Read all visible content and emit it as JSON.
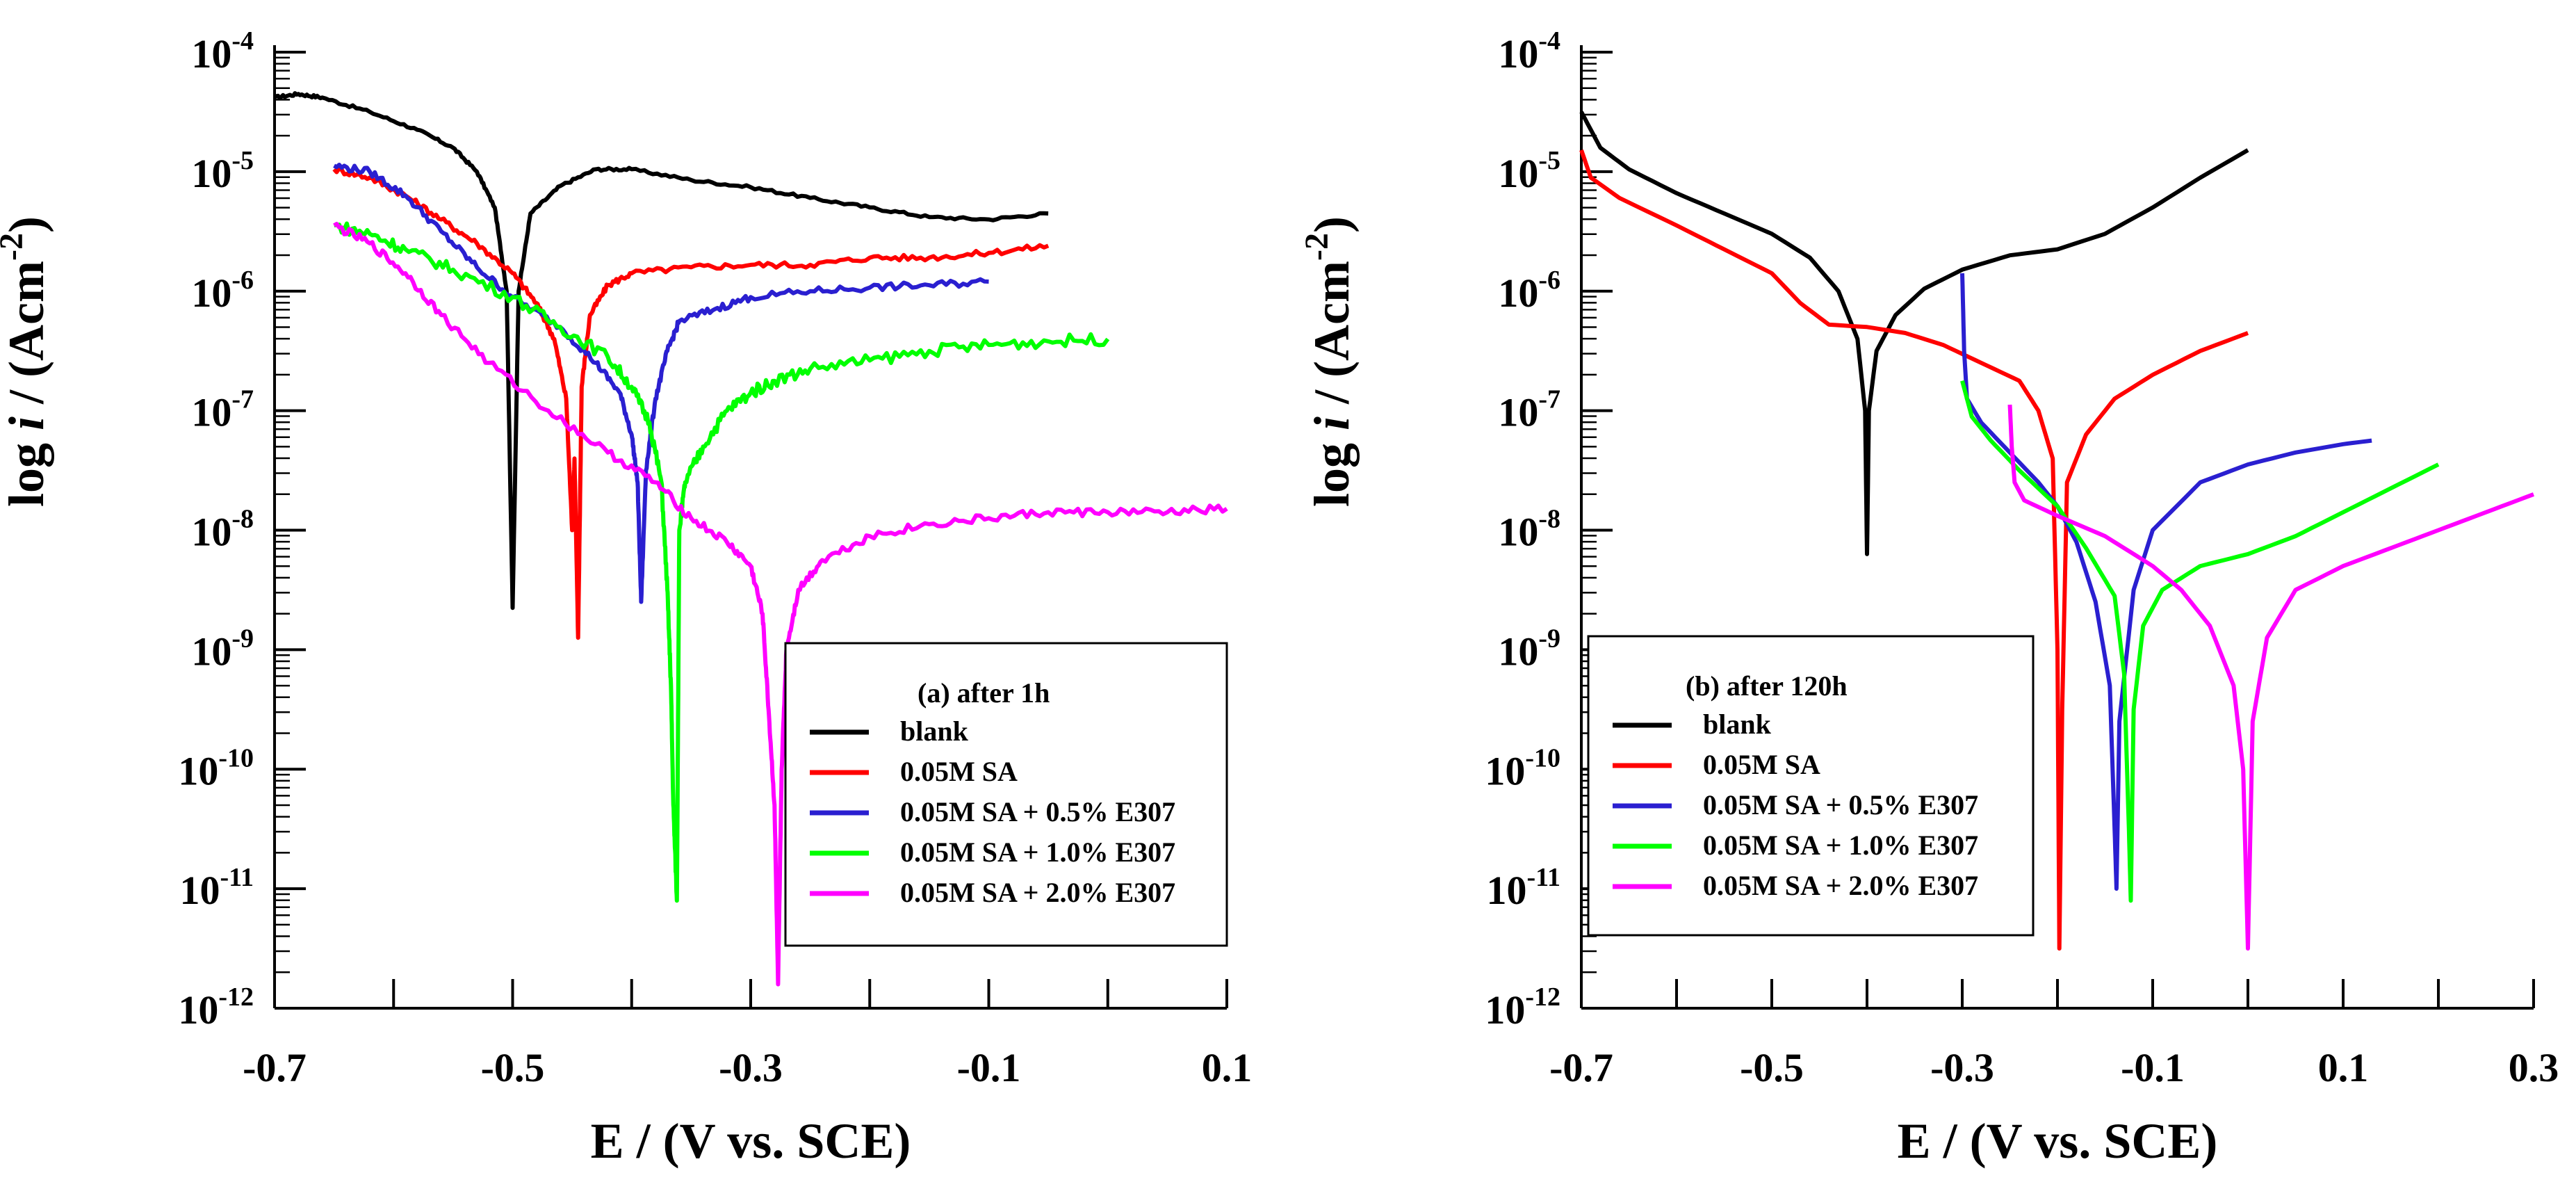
{
  "chart_data": [
    {
      "type": "line",
      "title": "(a) after 1h",
      "xlabel": "E / (V vs. SCE)",
      "ylabel_parts": [
        "log ",
        "i",
        " / (Acm",
        "-2",
        ")"
      ],
      "xlim": [
        -0.7,
        0.1
      ],
      "ylim_exp": [
        -12,
        -4
      ],
      "x_ticks": [
        -0.7,
        -0.5,
        -0.3,
        -0.1,
        0.1
      ],
      "x_tick_labels": [
        "-0.7",
        "-0.5",
        "-0.3",
        "-0.1",
        "0.1"
      ],
      "y_ticks": [
        -12,
        -11,
        -10,
        -9,
        -8,
        -7,
        -6,
        -5,
        -4
      ],
      "y_tick_base": "10",
      "y_tick_exponents": [
        "-12",
        "-11",
        "-10",
        "-9",
        "-8",
        "-7",
        "-6",
        "-5",
        "-4"
      ],
      "legend_title": "(a) after 1h",
      "legend_position": "bottom-right",
      "series": [
        {
          "name": "blank",
          "color": "#000000",
          "noise": 0.012,
          "points": [
            [
              -0.7,
              -4.38
            ],
            [
              -0.68,
              -4.35
            ],
            [
              -0.66,
              -4.38
            ],
            [
              -0.62,
              -4.5
            ],
            [
              -0.58,
              -4.65
            ],
            [
              -0.55,
              -4.8
            ],
            [
              -0.53,
              -5.0
            ],
            [
              -0.515,
              -5.3
            ],
            [
              -0.505,
              -6.0
            ],
            [
              -0.5,
              -8.65
            ],
            [
              -0.495,
              -6.0
            ],
            [
              -0.485,
              -5.35
            ],
            [
              -0.46,
              -5.12
            ],
            [
              -0.43,
              -4.98
            ],
            [
              -0.4,
              -4.98
            ],
            [
              -0.35,
              -5.07
            ],
            [
              -0.3,
              -5.13
            ],
            [
              -0.25,
              -5.22
            ],
            [
              -0.2,
              -5.3
            ],
            [
              -0.15,
              -5.38
            ],
            [
              -0.1,
              -5.4
            ],
            [
              -0.05,
              -5.35
            ]
          ]
        },
        {
          "name": "0.05M SA",
          "color": "#ff0000",
          "noise": 0.025,
          "points": [
            [
              -0.65,
              -4.98
            ],
            [
              -0.62,
              -5.05
            ],
            [
              -0.59,
              -5.2
            ],
            [
              -0.56,
              -5.4
            ],
            [
              -0.53,
              -5.6
            ],
            [
              -0.5,
              -5.85
            ],
            [
              -0.48,
              -6.1
            ],
            [
              -0.465,
              -6.4
            ],
            [
              -0.455,
              -6.9
            ],
            [
              -0.45,
              -8.0
            ],
            [
              -0.448,
              -7.4
            ],
            [
              -0.445,
              -8.9
            ],
            [
              -0.442,
              -6.8
            ],
            [
              -0.435,
              -6.2
            ],
            [
              -0.42,
              -5.95
            ],
            [
              -0.4,
              -5.85
            ],
            [
              -0.35,
              -5.8
            ],
            [
              -0.3,
              -5.78
            ],
            [
              -0.25,
              -5.78
            ],
            [
              -0.2,
              -5.72
            ],
            [
              -0.15,
              -5.72
            ],
            [
              -0.1,
              -5.68
            ],
            [
              -0.05,
              -5.62
            ]
          ]
        },
        {
          "name": "0.05M SA + 0.5% E307",
          "color": "#2a1fd0",
          "noise": 0.03,
          "points": [
            [
              -0.65,
              -4.95
            ],
            [
              -0.62,
              -5.0
            ],
            [
              -0.59,
              -5.2
            ],
            [
              -0.56,
              -5.5
            ],
            [
              -0.53,
              -5.8
            ],
            [
              -0.5,
              -6.05
            ],
            [
              -0.46,
              -6.3
            ],
            [
              -0.43,
              -6.6
            ],
            [
              -0.41,
              -6.85
            ],
            [
              -0.4,
              -7.2
            ],
            [
              -0.395,
              -7.6
            ],
            [
              -0.392,
              -8.6
            ],
            [
              -0.388,
              -7.5
            ],
            [
              -0.38,
              -6.9
            ],
            [
              -0.37,
              -6.5
            ],
            [
              -0.36,
              -6.25
            ],
            [
              -0.33,
              -6.15
            ],
            [
              -0.3,
              -6.05
            ],
            [
              -0.25,
              -6.0
            ],
            [
              -0.2,
              -5.97
            ],
            [
              -0.15,
              -5.95
            ],
            [
              -0.1,
              -5.92
            ]
          ]
        },
        {
          "name": "0.05M SA + 1.0% E307",
          "color": "#00ff00",
          "noise": 0.05,
          "points": [
            [
              -0.65,
              -5.45
            ],
            [
              -0.62,
              -5.52
            ],
            [
              -0.59,
              -5.65
            ],
            [
              -0.55,
              -5.82
            ],
            [
              -0.5,
              -6.05
            ],
            [
              -0.46,
              -6.3
            ],
            [
              -0.42,
              -6.55
            ],
            [
              -0.4,
              -6.8
            ],
            [
              -0.385,
              -7.1
            ],
            [
              -0.375,
              -7.6
            ],
            [
              -0.37,
              -8.5
            ],
            [
              -0.367,
              -9.3
            ],
            [
              -0.365,
              -10.3
            ],
            [
              -0.362,
              -11.1
            ],
            [
              -0.36,
              -8.0
            ],
            [
              -0.355,
              -7.6
            ],
            [
              -0.34,
              -7.3
            ],
            [
              -0.32,
              -7.0
            ],
            [
              -0.3,
              -6.85
            ],
            [
              -0.28,
              -6.75
            ],
            [
              -0.25,
              -6.65
            ],
            [
              -0.2,
              -6.58
            ],
            [
              -0.15,
              -6.5
            ],
            [
              -0.1,
              -6.45
            ],
            [
              -0.05,
              -6.42
            ],
            [
              0.0,
              -6.4
            ]
          ]
        },
        {
          "name": "0.05M SA + 2.0% E307",
          "color": "#ff00ff",
          "noise": 0.035,
          "points": [
            [
              -0.65,
              -5.45
            ],
            [
              -0.62,
              -5.6
            ],
            [
              -0.59,
              -5.85
            ],
            [
              -0.56,
              -6.2
            ],
            [
              -0.52,
              -6.6
            ],
            [
              -0.47,
              -7.0
            ],
            [
              -0.42,
              -7.35
            ],
            [
              -0.38,
              -7.6
            ],
            [
              -0.35,
              -7.9
            ],
            [
              -0.32,
              -8.1
            ],
            [
              -0.3,
              -8.3
            ],
            [
              -0.29,
              -8.7
            ],
            [
              -0.285,
              -9.5
            ],
            [
              -0.28,
              -10.3
            ],
            [
              -0.277,
              -11.8
            ],
            [
              -0.274,
              -10.0
            ],
            [
              -0.27,
              -9.0
            ],
            [
              -0.26,
              -8.5
            ],
            [
              -0.24,
              -8.25
            ],
            [
              -0.2,
              -8.05
            ],
            [
              -0.15,
              -7.95
            ],
            [
              -0.1,
              -7.9
            ],
            [
              -0.05,
              -7.85
            ],
            [
              0.0,
              -7.85
            ],
            [
              0.05,
              -7.85
            ],
            [
              0.1,
              -7.82
            ]
          ]
        }
      ]
    },
    {
      "type": "line",
      "title": "(b) after 120h",
      "xlabel": "E / (V vs. SCE)",
      "ylabel_parts": [
        "log ",
        "i",
        " / (Acm",
        "-2",
        ")"
      ],
      "xlim": [
        -0.7,
        0.3
      ],
      "ylim_exp": [
        -12,
        -4
      ],
      "x_ticks": [
        -0.7,
        -0.5,
        -0.3,
        -0.1,
        0.1,
        0.3
      ],
      "x_tick_labels": [
        "-0.7",
        "-0.5",
        "-0.3",
        "-0.1",
        "0.1",
        "0.3"
      ],
      "y_ticks": [
        -12,
        -11,
        -10,
        -9,
        -8,
        -7,
        -6,
        -5,
        -4
      ],
      "y_tick_base": "10",
      "y_tick_exponents": [
        "-12",
        "-11",
        "-10",
        "-9",
        "-8",
        "-7",
        "-6",
        "-5",
        "-4"
      ],
      "legend_title": "(b) after 120h",
      "legend_position": "bottom-left",
      "series": [
        {
          "name": "blank",
          "color": "#000000",
          "noise": 0,
          "points": [
            [
              -0.7,
              -4.5
            ],
            [
              -0.68,
              -4.8
            ],
            [
              -0.65,
              -4.98
            ],
            [
              -0.6,
              -5.18
            ],
            [
              -0.55,
              -5.35
            ],
            [
              -0.5,
              -5.52
            ],
            [
              -0.46,
              -5.72
            ],
            [
              -0.43,
              -6.0
            ],
            [
              -0.41,
              -6.4
            ],
            [
              -0.402,
              -7.0
            ],
            [
              -0.4,
              -8.2
            ],
            [
              -0.398,
              -7.0
            ],
            [
              -0.39,
              -6.5
            ],
            [
              -0.37,
              -6.2
            ],
            [
              -0.34,
              -5.98
            ],
            [
              -0.3,
              -5.82
            ],
            [
              -0.25,
              -5.7
            ],
            [
              -0.2,
              -5.65
            ],
            [
              -0.15,
              -5.52
            ],
            [
              -0.1,
              -5.3
            ],
            [
              -0.05,
              -5.05
            ],
            [
              0.0,
              -4.82
            ]
          ]
        },
        {
          "name": "0.05M SA",
          "color": "#ff0000",
          "noise": 0,
          "points": [
            [
              -0.7,
              -4.82
            ],
            [
              -0.69,
              -5.05
            ],
            [
              -0.66,
              -5.22
            ],
            [
              -0.6,
              -5.45
            ],
            [
              -0.55,
              -5.65
            ],
            [
              -0.5,
              -5.85
            ],
            [
              -0.47,
              -6.1
            ],
            [
              -0.44,
              -6.28
            ],
            [
              -0.4,
              -6.3
            ],
            [
              -0.36,
              -6.35
            ],
            [
              -0.32,
              -6.45
            ],
            [
              -0.28,
              -6.6
            ],
            [
              -0.24,
              -6.75
            ],
            [
              -0.22,
              -7.0
            ],
            [
              -0.205,
              -7.4
            ],
            [
              -0.2,
              -9.0
            ],
            [
              -0.198,
              -11.5
            ],
            [
              -0.195,
              -9.5
            ],
            [
              -0.19,
              -7.6
            ],
            [
              -0.17,
              -7.2
            ],
            [
              -0.14,
              -6.9
            ],
            [
              -0.1,
              -6.7
            ],
            [
              -0.05,
              -6.5
            ],
            [
              0.0,
              -6.35
            ]
          ]
        },
        {
          "name": "0.05M SA + 0.5% E307",
          "color": "#2a1fd0",
          "noise": 0,
          "points": [
            [
              -0.3,
              -5.85
            ],
            [
              -0.298,
              -6.5
            ],
            [
              -0.295,
              -6.9
            ],
            [
              -0.28,
              -7.1
            ],
            [
              -0.25,
              -7.35
            ],
            [
              -0.22,
              -7.6
            ],
            [
              -0.2,
              -7.8
            ],
            [
              -0.18,
              -8.1
            ],
            [
              -0.16,
              -8.6
            ],
            [
              -0.145,
              -9.3
            ],
            [
              -0.14,
              -10.5
            ],
            [
              -0.138,
              -11.0
            ],
            [
              -0.135,
              -9.6
            ],
            [
              -0.12,
              -8.5
            ],
            [
              -0.1,
              -8.0
            ],
            [
              -0.05,
              -7.6
            ],
            [
              0.0,
              -7.45
            ],
            [
              0.05,
              -7.35
            ],
            [
              0.1,
              -7.28
            ],
            [
              0.13,
              -7.25
            ]
          ]
        },
        {
          "name": "0.05M SA + 1.0% E307",
          "color": "#00ff00",
          "noise": 0,
          "points": [
            [
              -0.3,
              -6.75
            ],
            [
              -0.29,
              -7.05
            ],
            [
              -0.27,
              -7.25
            ],
            [
              -0.24,
              -7.5
            ],
            [
              -0.2,
              -7.8
            ],
            [
              -0.17,
              -8.15
            ],
            [
              -0.14,
              -8.55
            ],
            [
              -0.13,
              -9.2
            ],
            [
              -0.125,
              -10.5
            ],
            [
              -0.123,
              -11.1
            ],
            [
              -0.12,
              -9.5
            ],
            [
              -0.11,
              -8.8
            ],
            [
              -0.09,
              -8.5
            ],
            [
              -0.05,
              -8.3
            ],
            [
              0.0,
              -8.2
            ],
            [
              0.05,
              -8.05
            ],
            [
              0.1,
              -7.85
            ],
            [
              0.15,
              -7.65
            ],
            [
              0.2,
              -7.45
            ]
          ]
        },
        {
          "name": "0.05M SA + 2.0% E307",
          "color": "#ff00ff",
          "noise": 0,
          "points": [
            [
              -0.25,
              -6.95
            ],
            [
              -0.248,
              -7.3
            ],
            [
              -0.245,
              -7.6
            ],
            [
              -0.235,
              -7.75
            ],
            [
              -0.2,
              -7.88
            ],
            [
              -0.15,
              -8.05
            ],
            [
              -0.1,
              -8.3
            ],
            [
              -0.07,
              -8.5
            ],
            [
              -0.04,
              -8.8
            ],
            [
              -0.015,
              -9.3
            ],
            [
              -0.005,
              -10.0
            ],
            [
              0.0,
              -11.5
            ],
            [
              0.005,
              -9.6
            ],
            [
              0.02,
              -8.9
            ],
            [
              0.05,
              -8.5
            ],
            [
              0.1,
              -8.3
            ],
            [
              0.15,
              -8.15
            ],
            [
              0.2,
              -8.0
            ],
            [
              0.25,
              -7.85
            ],
            [
              0.3,
              -7.7
            ]
          ]
        }
      ]
    }
  ]
}
